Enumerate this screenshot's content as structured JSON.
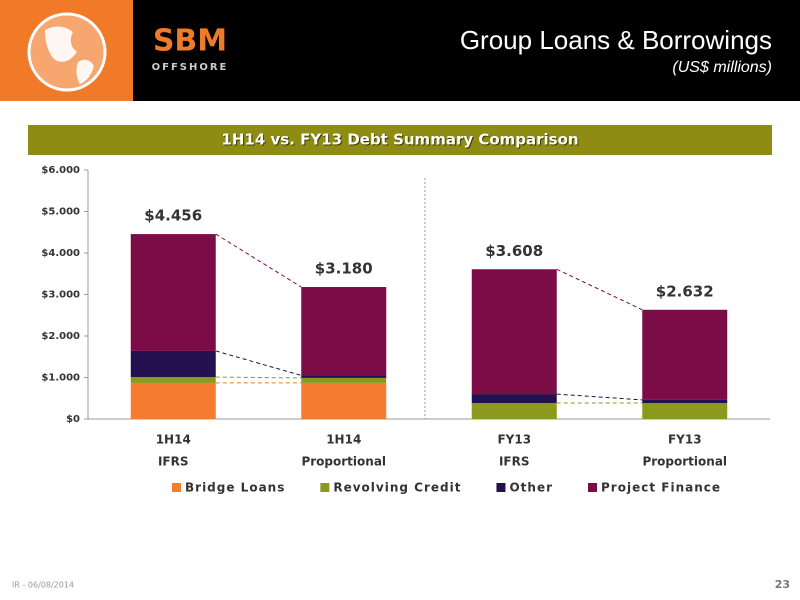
{
  "header": {
    "title": "Group Loans & Borrowings",
    "subtitle": "(US$ millions)",
    "logo": [
      "SBM",
      "OFFSHORE"
    ]
  },
  "footer": {
    "left": "IR - 06/08/2014",
    "page": "23"
  },
  "chart_data": {
    "type": "stacked_bar",
    "title": "1H14 vs. FY13 Debt Summary Comparison",
    "categories": [
      [
        "1H14",
        "IFRS"
      ],
      [
        "1H14",
        "Proportional"
      ],
      [
        "FY13",
        "IFRS"
      ],
      [
        "FY13",
        "Proportional"
      ]
    ],
    "series": [
      {
        "name": "Bridge Loans",
        "color": "#f47b30",
        "values": [
          870,
          870,
          0,
          0
        ]
      },
      {
        "name": "Revolving Credit",
        "color": "#8a9a1c",
        "values": [
          140,
          120,
          385,
          385
        ]
      },
      {
        "name": "Other",
        "color": "#24104e",
        "values": [
          630,
          60,
          215,
          75
        ]
      },
      {
        "name": "Project Finance",
        "color": "#7b0c46",
        "values": [
          2816,
          2130,
          3008,
          2172
        ]
      }
    ],
    "annotations": [
      "$4.456",
      "$3.180",
      "$3.608",
      "$2.632"
    ],
    "ylim": [
      0,
      6000
    ],
    "yticks": [
      {
        "value": 0,
        "label": "$0"
      },
      {
        "value": 1000,
        "label": "$1.000"
      },
      {
        "value": 2000,
        "label": "$2.000"
      },
      {
        "value": 3000,
        "label": "$3.000"
      },
      {
        "value": 4000,
        "label": "$4.000"
      },
      {
        "value": 5000,
        "label": "$5.000"
      },
      {
        "value": 6000,
        "label": "$6.000"
      }
    ],
    "legend": "bottom"
  }
}
